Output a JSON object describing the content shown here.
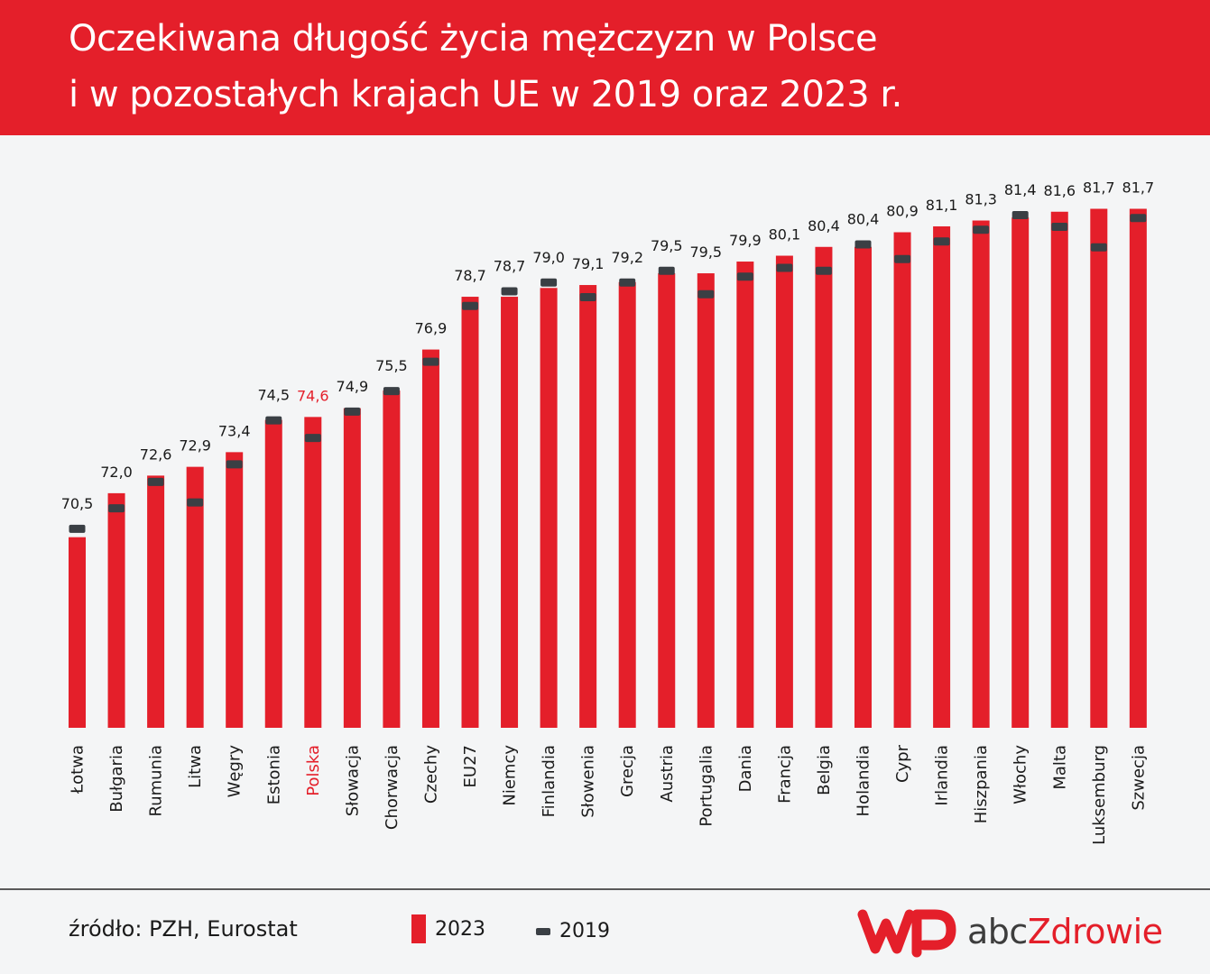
{
  "header": {
    "title_line1": "Oczekiwana długość życia mężczyzn w Polsce",
    "title_line2": "i w pozostałych krajach UE w 2019 oraz 2023 r."
  },
  "colors": {
    "bar_2023": "#e41f2a",
    "marker_2019": "#3a3f44",
    "highlight_label": "#e41f2a",
    "text": "#1a1a1a",
    "background": "#f4f5f6"
  },
  "chart_data": {
    "type": "bar",
    "categories": [
      "Łotwa",
      "Bułgaria",
      "Rumunia",
      "Litwa",
      "Węgry",
      "Estonia",
      "Polska",
      "Słowacja",
      "Chorwacja",
      "Czechy",
      "EU27",
      "Niemcy",
      "Finlandia",
      "Słowenia",
      "Grecja",
      "Austria",
      "Portugalia",
      "Dania",
      "Francja",
      "Belgia",
      "Holandia",
      "Cypr",
      "Irlandia",
      "Hiszpania",
      "Włochy",
      "Malta",
      "Luksemburg",
      "Szwecja"
    ],
    "highlight_category": "Polska",
    "series": [
      {
        "name": "2023",
        "values": [
          70.5,
          72.0,
          72.6,
          72.9,
          73.4,
          74.5,
          74.6,
          74.9,
          75.5,
          76.9,
          78.7,
          78.7,
          79.0,
          79.1,
          79.2,
          79.5,
          79.5,
          79.9,
          80.1,
          80.4,
          80.4,
          80.9,
          81.1,
          81.3,
          81.4,
          81.6,
          81.7,
          81.7
        ],
        "labels": [
          "70,5",
          "72,0",
          "72,6",
          "72,9",
          "73,4",
          "74,5",
          "74,6",
          "74,9",
          "75,5",
          "76,9",
          "78,7",
          "78,7",
          "79,0",
          "79,1",
          "79,2",
          "79,5",
          "79,5",
          "79,9",
          "80,1",
          "80,4",
          "80,4",
          "80,9",
          "81,1",
          "81,3",
          "81,4",
          "81,6",
          "81,7",
          "81,7"
        ]
      },
      {
        "name": "2019",
        "values": [
          70.8,
          71.5,
          72.4,
          71.7,
          73.0,
          74.5,
          73.9,
          74.8,
          75.5,
          76.5,
          78.4,
          78.9,
          79.2,
          78.7,
          79.2,
          79.6,
          78.8,
          79.4,
          79.7,
          79.6,
          80.5,
          80.0,
          80.6,
          81.0,
          81.5,
          81.1,
          80.4,
          81.4
        ]
      }
    ],
    "ylim": [
      64,
      82.3
    ],
    "grid": false,
    "legend": "bottom",
    "xlabel": "",
    "ylabel": ""
  },
  "footer": {
    "source": "źródło: PZH, Eurostat",
    "legend_2023": "2023",
    "legend_2019": "2019"
  },
  "logo": {
    "part1": "abc",
    "part2": "Zdrowie"
  }
}
